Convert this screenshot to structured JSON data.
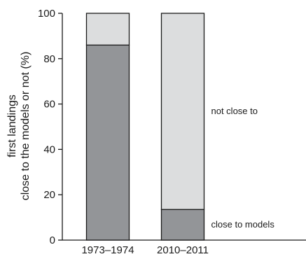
{
  "chart_data": {
    "type": "bar",
    "stacked": true,
    "categories": [
      "1973–1974",
      "2010–2011"
    ],
    "series": [
      {
        "name": "close to models",
        "values": [
          86,
          13.5
        ]
      },
      {
        "name": "not close to",
        "values": [
          14,
          86.5
        ]
      }
    ],
    "ylabel_lines": [
      "first landings",
      "close to the models or not (%)"
    ],
    "ylim": [
      0,
      100
    ],
    "yticks": [
      0,
      20,
      40,
      60,
      80,
      100
    ],
    "legend": "segment labels at right of second bar",
    "grid": false,
    "colors": {
      "close_to_models": "#939598",
      "not_close_to": "#dcddde",
      "stroke": "#1a1a1a"
    }
  }
}
